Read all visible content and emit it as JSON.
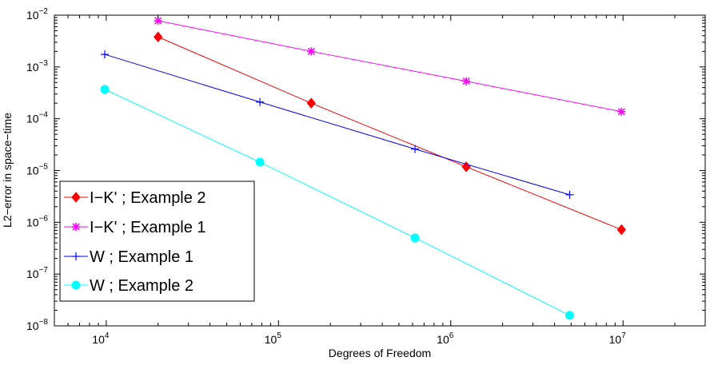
{
  "chart_data": {
    "type": "line",
    "xscale": "log",
    "yscale": "log",
    "xlabel": "Degrees of Freedom",
    "ylabel": "L2−error in space−time",
    "xlim": [
      5000,
      30000000
    ],
    "ylim": [
      1e-08,
      0.01
    ],
    "xticks": [
      {
        "value": 10000,
        "base": "10",
        "exp": "4"
      },
      {
        "value": 100000,
        "base": "10",
        "exp": "5"
      },
      {
        "value": 1000000,
        "base": "10",
        "exp": "6"
      },
      {
        "value": 10000000,
        "base": "10",
        "exp": "7"
      }
    ],
    "yticks": [
      {
        "value": 1e-08,
        "base": "10",
        "exp": "−8"
      },
      {
        "value": 1e-07,
        "base": "10",
        "exp": "−7"
      },
      {
        "value": 1e-06,
        "base": "10",
        "exp": "−6"
      },
      {
        "value": 1e-05,
        "base": "10",
        "exp": "−5"
      },
      {
        "value": 0.0001,
        "base": "10",
        "exp": "−4"
      },
      {
        "value": 0.001,
        "base": "10",
        "exp": "−3"
      },
      {
        "value": 0.01,
        "base": "10",
        "exp": "−2"
      }
    ],
    "grid": false,
    "legend_position": "bottom-left",
    "series": [
      {
        "name": "I−K' ; Example 2",
        "color": "#ff0000",
        "marker": "diamond",
        "marker_fill": "#ff0000",
        "x": [
          20000,
          155000,
          1230000,
          9800000
        ],
        "y": [
          0.0038,
          0.0002,
          1.18e-05,
          7.2e-07
        ]
      },
      {
        "name": " I−K' ; Example 1",
        "color": "#ff00ff",
        "marker": "asterisk",
        "marker_fill": "#ff00ff",
        "x": [
          20000,
          155000,
          1230000,
          9800000
        ],
        "y": [
          0.0078,
          0.002,
          0.00053,
          0.000137
        ]
      },
      {
        "name": "W ; Example 1",
        "color": "#0000ff",
        "marker": "plus",
        "marker_fill": "#0000ff",
        "x": [
          9800,
          78000,
          620000,
          4900000
        ],
        "y": [
          0.00175,
          0.00021,
          2.6e-05,
          3.4e-06
        ]
      },
      {
        "name": "W ; Example 2",
        "color": "#00ffff",
        "marker": "circle",
        "marker_fill": "#00ffff",
        "x": [
          9800,
          78000,
          620000,
          4900000
        ],
        "y": [
          0.00037,
          1.45e-05,
          5e-07,
          1.6e-08
        ]
      }
    ]
  }
}
